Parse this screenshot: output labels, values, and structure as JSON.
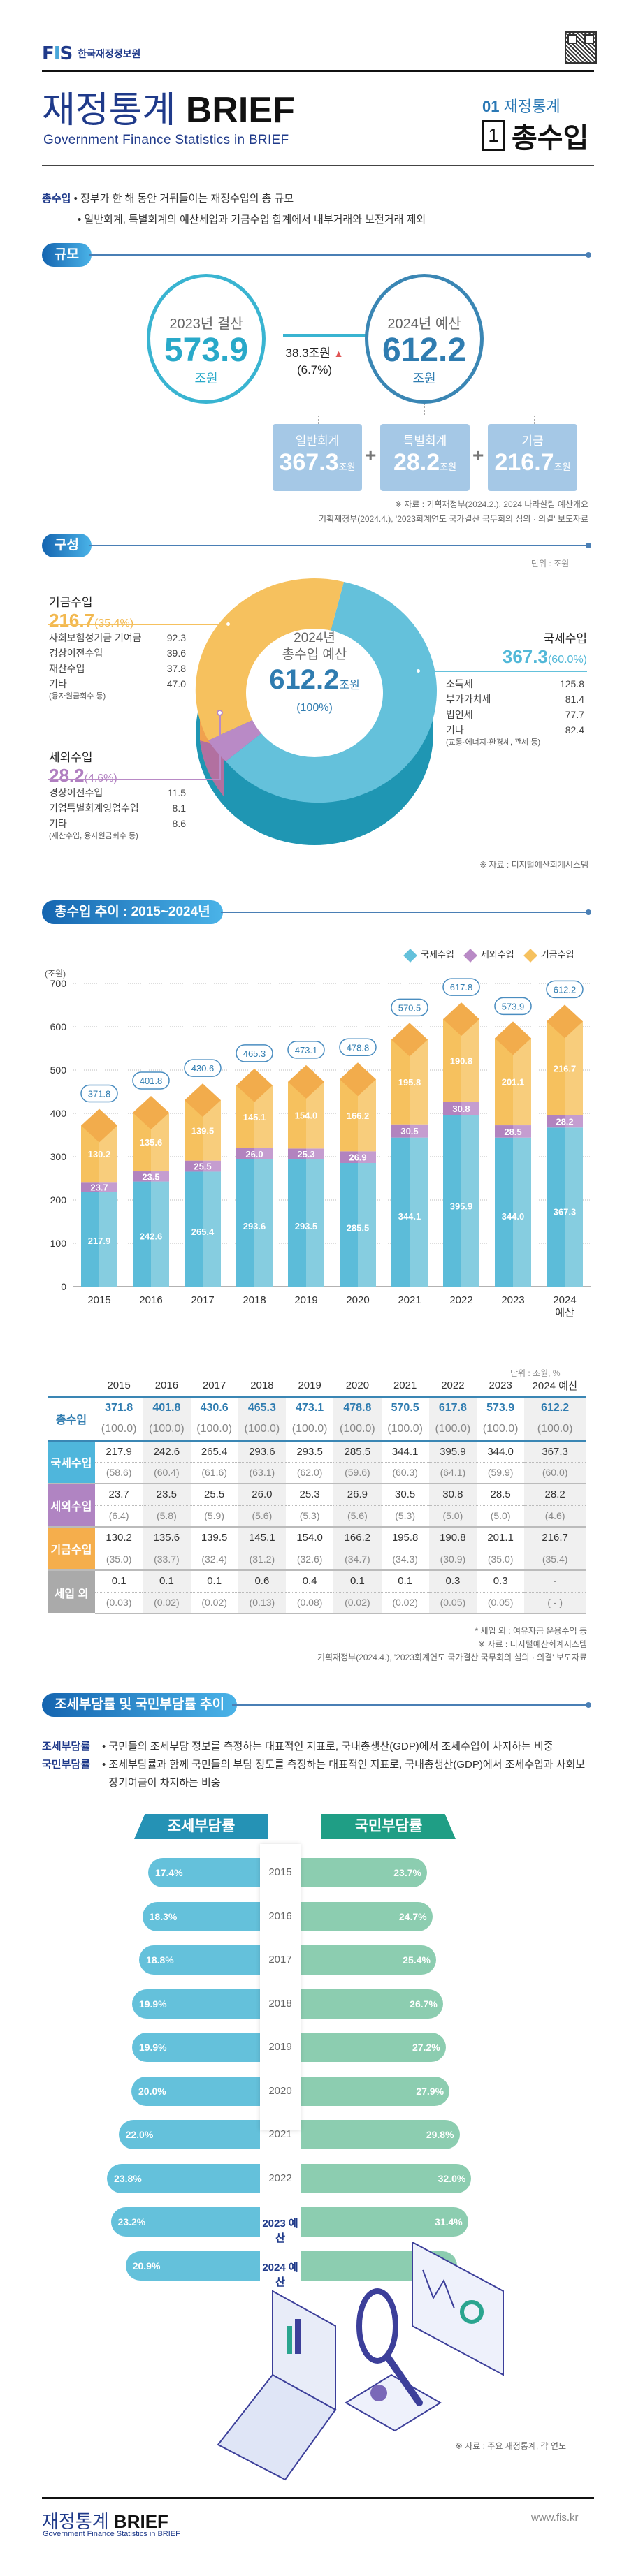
{
  "header": {
    "org_mark": "FIS",
    "org_name": "한국재정정보원",
    "title_ko": "재정통계",
    "title_en": "BRIEF",
    "subtitle": "Government Finance Statistics in BRIEF",
    "section_num": "01",
    "section_cat": "재정통계",
    "topic_num": "1",
    "topic": "총수입"
  },
  "definition": {
    "term": "총수입",
    "lines": [
      "정부가 한 해 동안 거둬들이는 재정수입의 총 규모",
      "일반회계, 특별회계의 예산세입과 기금수입 합계에서 내부거래와 보전거래 제외"
    ]
  },
  "scale": {
    "section_title": "규모",
    "left": {
      "label": "2023년 결산",
      "value": "573.9",
      "unit": "조원"
    },
    "right": {
      "label": "2024년 예산",
      "value": "612.2",
      "unit": "조원"
    },
    "delta": {
      "amount": "38.3조원",
      "arrow": "▲",
      "pct": "(6.7%)"
    },
    "components": [
      {
        "label": "일반회계",
        "value": "367.3",
        "unit": "조원"
      },
      {
        "label": "특별회계",
        "value": "28.2",
        "unit": "조원"
      },
      {
        "label": "기금",
        "value": "216.7",
        "unit": "조원"
      }
    ],
    "plus": "+",
    "source": [
      "※ 자료 : 기획재정부(2024.2.), 2024 나라살림 예산개요",
      "기획재정부(2024.4.), '2023회계연도 국가결산 국무회의 심의 · 의결' 보도자료"
    ]
  },
  "composition": {
    "section_title": "구성",
    "unit_note": "단위 : 조원",
    "center": {
      "year": "2024년",
      "label": "총수입 예산",
      "value": "612.2",
      "unit": "조원",
      "pct": "(100%)"
    },
    "groups": [
      {
        "name": "기금수입",
        "value": "216.7",
        "pct": "(35.4%)",
        "color": "#f6c15e",
        "items": [
          {
            "label": "사회보험성기금 기여금",
            "value": "92.3"
          },
          {
            "label": "경상이전수입",
            "value": "39.6"
          },
          {
            "label": "재산수입",
            "value": "37.8"
          },
          {
            "label": "기타",
            "value": "47.0"
          }
        ],
        "note": "(융자원금회수 등)"
      },
      {
        "name": "세외수입",
        "value": "28.2",
        "pct": "(4.6%)",
        "color": "#b98ac6",
        "items": [
          {
            "label": "경상이전수입",
            "value": "11.5"
          },
          {
            "label": "기업특별회계영업수입",
            "value": "8.1"
          },
          {
            "label": "기타",
            "value": "8.6"
          }
        ],
        "note": "(재산수입, 융자원금회수 등)"
      },
      {
        "name": "국세수입",
        "value": "367.3",
        "pct": "(60.0%)",
        "color": "#64c1db",
        "items": [
          {
            "label": "소득세",
            "value": "125.8"
          },
          {
            "label": "부가가치세",
            "value": "81.4"
          },
          {
            "label": "법인세",
            "value": "77.7"
          },
          {
            "label": "기타",
            "value": "82.4"
          }
        ],
        "note": "(교통·에너지·환경세, 관세 등)"
      }
    ],
    "source": "※ 자료 : 디지털예산회계시스템"
  },
  "trend": {
    "section_title": "총수입 추이 : 2015~2024년",
    "table_unit": "단위 : 조원, %",
    "row_headers": [
      "총수입",
      "국세수입",
      "세외수입",
      "기금수입",
      "세입 외"
    ],
    "row_colors": [
      "#ffffff",
      "#4fb6dc",
      "#b084c2",
      "#f5ae4c",
      "#aaaaaa"
    ],
    "years": [
      "2015",
      "2016",
      "2017",
      "2018",
      "2019",
      "2020",
      "2021",
      "2022",
      "2023",
      "2024 예산"
    ],
    "rows": [
      {
        "values": [
          "371.8",
          "401.8",
          "430.6",
          "465.3",
          "473.1",
          "478.8",
          "570.5",
          "617.8",
          "573.9",
          "612.2"
        ],
        "pcts": [
          "(100.0)",
          "(100.0)",
          "(100.0)",
          "(100.0)",
          "(100.0)",
          "(100.0)",
          "(100.0)",
          "(100.0)",
          "(100.0)",
          "(100.0)"
        ]
      },
      {
        "values": [
          "217.9",
          "242.6",
          "265.4",
          "293.6",
          "293.5",
          "285.5",
          "344.1",
          "395.9",
          "344.0",
          "367.3"
        ],
        "pcts": [
          "(58.6)",
          "(60.4)",
          "(61.6)",
          "(63.1)",
          "(62.0)",
          "(59.6)",
          "(60.3)",
          "(64.1)",
          "(59.9)",
          "(60.0)"
        ]
      },
      {
        "values": [
          "23.7",
          "23.5",
          "25.5",
          "26.0",
          "25.3",
          "26.9",
          "30.5",
          "30.8",
          "28.5",
          "28.2"
        ],
        "pcts": [
          "(6.4)",
          "(5.8)",
          "(5.9)",
          "(5.6)",
          "(5.3)",
          "(5.6)",
          "(5.3)",
          "(5.0)",
          "(5.0)",
          "(4.6)"
        ]
      },
      {
        "values": [
          "130.2",
          "135.6",
          "139.5",
          "145.1",
          "154.0",
          "166.2",
          "195.8",
          "190.8",
          "201.1",
          "216.7"
        ],
        "pcts": [
          "(35.0)",
          "(33.7)",
          "(32.4)",
          "(31.2)",
          "(32.6)",
          "(34.7)",
          "(34.3)",
          "(30.9)",
          "(35.0)",
          "(35.4)"
        ]
      },
      {
        "values": [
          "0.1",
          "0.1",
          "0.1",
          "0.6",
          "0.4",
          "0.1",
          "0.1",
          "0.3",
          "0.3",
          "-"
        ],
        "pcts": [
          "(0.03)",
          "(0.02)",
          "(0.02)",
          "(0.13)",
          "(0.08)",
          "(0.02)",
          "(0.02)",
          "(0.05)",
          "(0.05)",
          "( - )"
        ]
      }
    ],
    "notes": [
      "* 세입 외 : 여유자금 운용수익 등",
      "※ 자료 : 디지털예산회계시스템",
      "기획재정부(2024.4.), '2023회계연도 국가결산 국무회의 심의 · 의결' 보도자료"
    ]
  },
  "chart_data": [
    {
      "type": "bar",
      "title": "총수입 추이 : 2015~2024년",
      "stacked": true,
      "ylabel": "(조원)",
      "ylim": [
        0,
        700
      ],
      "yticks": [
        0,
        100,
        200,
        300,
        400,
        500,
        600,
        700
      ],
      "grid": true,
      "legend": "top-right",
      "categories": [
        "2015",
        "2016",
        "2017",
        "2018",
        "2019",
        "2020",
        "2021",
        "2022",
        "2023",
        "2024\n예산"
      ],
      "series": [
        {
          "name": "국세수입",
          "color": "#64c1db",
          "values": [
            217.9,
            242.6,
            265.4,
            293.6,
            293.5,
            285.5,
            344.1,
            395.9,
            344.0,
            367.3
          ]
        },
        {
          "name": "세외수입",
          "color": "#b98ac6",
          "values": [
            23.7,
            23.5,
            25.5,
            26.0,
            25.3,
            26.9,
            30.5,
            30.8,
            28.5,
            28.2
          ]
        },
        {
          "name": "기금수입",
          "color": "#f6c15e",
          "values": [
            130.2,
            135.6,
            139.5,
            145.1,
            154.0,
            166.2,
            195.8,
            190.8,
            201.1,
            216.7
          ]
        }
      ],
      "totals": [
        371.8,
        401.8,
        430.6,
        465.3,
        473.1,
        478.8,
        570.5,
        617.8,
        573.9,
        612.2
      ]
    },
    {
      "type": "pie",
      "title": "2024년 총수입 예산 구성",
      "unit": "조원",
      "labels": [
        "국세수입",
        "세외수입",
        "기금수입"
      ],
      "values": [
        367.3,
        28.2,
        216.7
      ],
      "percents": [
        60.0,
        4.6,
        35.4
      ],
      "total": 612.2
    },
    {
      "type": "bar",
      "orientation": "horizontal-diverging",
      "title": "조세부담률 및 국민부담률 추이",
      "categories": [
        "2015",
        "2016",
        "2017",
        "2018",
        "2019",
        "2020",
        "2021",
        "2022",
        "2023 예산",
        "2024 예산"
      ],
      "series": [
        {
          "name": "조세부담률",
          "color": "#64c1db",
          "values": [
            17.4,
            18.3,
            18.8,
            19.9,
            19.9,
            20.0,
            22.0,
            23.8,
            23.2,
            20.9
          ]
        },
        {
          "name": "국민부담률",
          "color": "#8ccdb0",
          "values": [
            23.7,
            24.7,
            25.4,
            26.7,
            27.2,
            27.9,
            29.8,
            32.0,
            31.4,
            29.3
          ]
        }
      ],
      "unit": "%"
    }
  ],
  "burden": {
    "section_title": "조세부담률 및 국민부담률 추이",
    "defs": [
      {
        "term": "조세부담률",
        "text": "국민들의 조세부담 정보를 측정하는 대표적인 지표로, 국내총생산(GDP)에서 조세수입이 차지하는 비중"
      },
      {
        "term": "국민부담률",
        "text": "조세부담률과 함께 국민들의 부담 정도를 측정하는 대표적인 지표로, 국내총생산(GDP)에서 조세수입과 사회보장기여금이 차지하는 비중"
      }
    ],
    "left_title": "조세부담률",
    "right_title": "국민부담률",
    "years": [
      "2015",
      "2016",
      "2017",
      "2018",
      "2019",
      "2020",
      "2021",
      "2022",
      "2023 예산",
      "2024 예산"
    ],
    "left_labels": [
      "17.4%",
      "18.3%",
      "18.8%",
      "19.9%",
      "19.9%",
      "20.0%",
      "22.0%",
      "23.8%",
      "23.2%",
      "20.9%"
    ],
    "right_labels": [
      "23.7%",
      "24.7%",
      "25.4%",
      "26.7%",
      "27.2%",
      "27.9%",
      "29.8%",
      "32.0%",
      "31.4%",
      "29.3%"
    ],
    "source": "※ 자료 : 주요 재정통계, 각 연도"
  },
  "footer": {
    "title_ko": "재정통계",
    "title_en": "BRIEF",
    "subtitle": "Government Finance Statistics in BRIEF",
    "url": "www.fis.kr"
  }
}
